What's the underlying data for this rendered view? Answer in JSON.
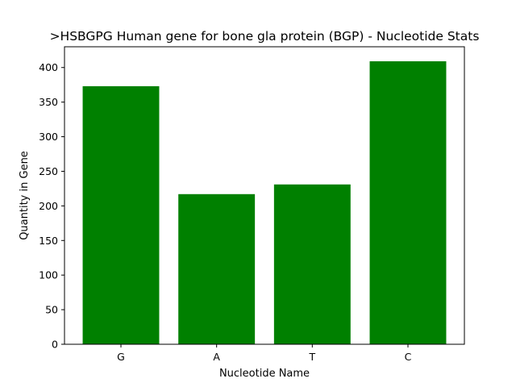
{
  "chart_data": {
    "type": "bar",
    "title": ">HSBGPG Human gene for bone gla protein (BGP) - Nucleotide Stats",
    "xlabel": "Nucleotide Name",
    "ylabel": "Quantity in Gene",
    "categories": [
      "G",
      "A",
      "T",
      "C"
    ],
    "values": [
      373,
      217,
      231,
      409
    ],
    "ylim": [
      0,
      430
    ],
    "yticks": [
      0,
      50,
      100,
      150,
      200,
      250,
      300,
      350,
      400
    ],
    "bar_color": "#008000",
    "grid": false
  }
}
